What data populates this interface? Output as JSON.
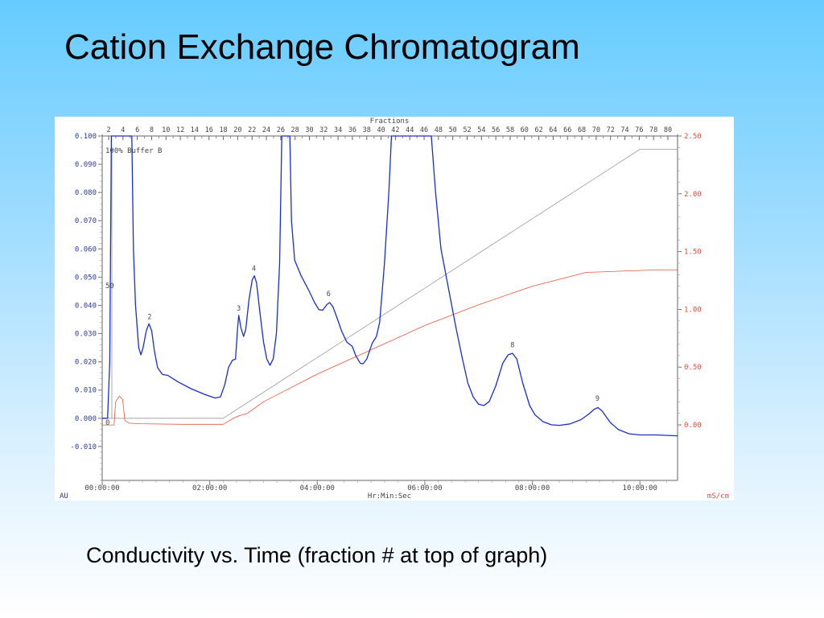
{
  "slide": {
    "title": "Cation Exchange Chromatogram",
    "caption": "Conductivity vs. Time (fraction # at top of graph)"
  },
  "chart_data": {
    "type": "line",
    "top_axis_label": "Fractions",
    "fraction_labels": [
      "2",
      "4",
      "6",
      "8",
      "10",
      "12",
      "14",
      "16",
      "18",
      "20",
      "22",
      "24",
      "26",
      "28",
      "30",
      "32",
      "34",
      "36",
      "38",
      "40",
      "42",
      "44",
      "46",
      "48",
      "50",
      "52",
      "54",
      "56",
      "58",
      "60",
      "62",
      "64",
      "66",
      "68",
      "70",
      "72",
      "74",
      "76",
      "78",
      "80"
    ],
    "xlabel": "Hr:Min:Sec",
    "x_ticks": [
      "00:00:00",
      "02:00:00",
      "04:00:00",
      "06:00:00",
      "08:00:00",
      "10:00:00"
    ],
    "x_range_hours": [
      0,
      10.7
    ],
    "left_unit": "AU",
    "left_ticks": [
      "0.100",
      "0.090",
      "0.080",
      "0.070",
      "0.060",
      "0.050",
      "0.040",
      "0.030",
      "0.020",
      "0.010",
      "0.000",
      "-0.010"
    ],
    "left_range": [
      -0.022,
      0.1
    ],
    "right_unit": "mS/cm",
    "right_ticks": [
      "2.50",
      "2.00",
      "1.50",
      "1.00",
      "0.50",
      "0.00"
    ],
    "right_range": [
      -0.48,
      2.5
    ],
    "buffer_label": "100% Buffer B",
    "buffer_marker_50": "50",
    "buffer_marker_0": "0",
    "colors": {
      "absorbance": "#1a2ecc",
      "conductivity": "#e8553c",
      "buffer": "#999999",
      "left_axis": "#2a3a9a",
      "right_axis": "#e04a3a"
    },
    "peak_labels": [
      {
        "text": "2",
        "x": 0.88,
        "y": 0.0335
      },
      {
        "text": "3",
        "x": 2.54,
        "y": 0.0365
      },
      {
        "text": "4",
        "x": 2.82,
        "y": 0.0505
      },
      {
        "text": "6",
        "x": 4.21,
        "y": 0.0415
      },
      {
        "text": "8",
        "x": 7.63,
        "y": 0.0235
      },
      {
        "text": "9",
        "x": 9.21,
        "y": 0.0045
      }
    ],
    "series": [
      {
        "key": "absorbance",
        "axis": "left",
        "points": [
          [
            0,
            0
          ],
          [
            0.1,
            0
          ],
          [
            0.14,
            0.02
          ],
          [
            0.17,
            0.1
          ],
          [
            0.2,
            0.1
          ],
          [
            0.55,
            0.1
          ],
          [
            0.58,
            0.06
          ],
          [
            0.62,
            0.04
          ],
          [
            0.68,
            0.025
          ],
          [
            0.72,
            0.0225
          ],
          [
            0.76,
            0.025
          ],
          [
            0.82,
            0.031
          ],
          [
            0.87,
            0.0335
          ],
          [
            0.92,
            0.031
          ],
          [
            0.97,
            0.024
          ],
          [
            1.03,
            0.018
          ],
          [
            1.12,
            0.0155
          ],
          [
            1.22,
            0.0152
          ],
          [
            1.4,
            0.013
          ],
          [
            1.65,
            0.0105
          ],
          [
            1.9,
            0.0085
          ],
          [
            2.1,
            0.0072
          ],
          [
            2.2,
            0.0076
          ],
          [
            2.28,
            0.012
          ],
          [
            2.35,
            0.018
          ],
          [
            2.42,
            0.0205
          ],
          [
            2.48,
            0.021
          ],
          [
            2.52,
            0.0325
          ],
          [
            2.54,
            0.0365
          ],
          [
            2.58,
            0.032
          ],
          [
            2.63,
            0.029
          ],
          [
            2.67,
            0.0315
          ],
          [
            2.73,
            0.042
          ],
          [
            2.79,
            0.049
          ],
          [
            2.83,
            0.0505
          ],
          [
            2.87,
            0.048
          ],
          [
            2.93,
            0.038
          ],
          [
            3.0,
            0.027
          ],
          [
            3.06,
            0.021
          ],
          [
            3.12,
            0.0188
          ],
          [
            3.18,
            0.021
          ],
          [
            3.24,
            0.03
          ],
          [
            3.3,
            0.055
          ],
          [
            3.34,
            0.1
          ],
          [
            3.49,
            0.1
          ],
          [
            3.52,
            0.07
          ],
          [
            3.58,
            0.056
          ],
          [
            3.7,
            0.0505
          ],
          [
            3.85,
            0.045
          ],
          [
            3.95,
            0.041
          ],
          [
            4.03,
            0.0385
          ],
          [
            4.1,
            0.0383
          ],
          [
            4.18,
            0.0403
          ],
          [
            4.23,
            0.041
          ],
          [
            4.29,
            0.0395
          ],
          [
            4.36,
            0.036
          ],
          [
            4.45,
            0.031
          ],
          [
            4.55,
            0.027
          ],
          [
            4.65,
            0.0255
          ],
          [
            4.72,
            0.022
          ],
          [
            4.8,
            0.0195
          ],
          [
            4.85,
            0.0193
          ],
          [
            4.92,
            0.021
          ],
          [
            5.02,
            0.0265
          ],
          [
            5.1,
            0.029
          ],
          [
            5.16,
            0.034
          ],
          [
            5.25,
            0.055
          ],
          [
            5.33,
            0.08
          ],
          [
            5.38,
            0.1
          ],
          [
            6.12,
            0.1
          ],
          [
            6.2,
            0.08
          ],
          [
            6.3,
            0.06
          ],
          [
            6.45,
            0.045
          ],
          [
            6.58,
            0.032
          ],
          [
            6.7,
            0.021
          ],
          [
            6.8,
            0.0125
          ],
          [
            6.9,
            0.0075
          ],
          [
            7.0,
            0.005
          ],
          [
            7.1,
            0.0045
          ],
          [
            7.2,
            0.006
          ],
          [
            7.32,
            0.0115
          ],
          [
            7.45,
            0.0195
          ],
          [
            7.55,
            0.0225
          ],
          [
            7.63,
            0.023
          ],
          [
            7.71,
            0.021
          ],
          [
            7.82,
            0.0125
          ],
          [
            7.95,
            0.0045
          ],
          [
            8.05,
            0.0012
          ],
          [
            8.2,
            -0.0012
          ],
          [
            8.35,
            -0.0023
          ],
          [
            8.5,
            -0.0025
          ],
          [
            8.7,
            -0.002
          ],
          [
            8.9,
            -0.0005
          ],
          [
            9.05,
            0.0015
          ],
          [
            9.15,
            0.0032
          ],
          [
            9.22,
            0.0038
          ],
          [
            9.3,
            0.0025
          ],
          [
            9.45,
            -0.0015
          ],
          [
            9.6,
            -0.004
          ],
          [
            9.8,
            -0.0055
          ],
          [
            10.0,
            -0.0059
          ],
          [
            10.3,
            -0.0059
          ],
          [
            10.7,
            -0.0062
          ]
        ]
      },
      {
        "key": "conductivity",
        "axis": "right",
        "points": [
          [
            0,
            0.0
          ],
          [
            0.22,
            0.0
          ],
          [
            0.25,
            0.2
          ],
          [
            0.32,
            0.25
          ],
          [
            0.38,
            0.22
          ],
          [
            0.42,
            0.04
          ],
          [
            0.5,
            0.015
          ],
          [
            0.7,
            0.01
          ],
          [
            1.5,
            0.005
          ],
          [
            2.25,
            0.005
          ],
          [
            2.45,
            0.06
          ],
          [
            2.55,
            0.08
          ],
          [
            2.7,
            0.1
          ],
          [
            3.0,
            0.2
          ],
          [
            4.0,
            0.44
          ],
          [
            5.0,
            0.65
          ],
          [
            6.0,
            0.86
          ],
          [
            7.0,
            1.04
          ],
          [
            8.0,
            1.2
          ],
          [
            9.0,
            1.32
          ],
          [
            10.2,
            1.34
          ],
          [
            10.7,
            1.34
          ]
        ]
      },
      {
        "key": "buffer",
        "axis": "left",
        "points": [
          [
            0,
            0.0
          ],
          [
            0.18,
            0.0
          ],
          [
            0.18,
            0.05
          ],
          [
            0.18,
            0.095
          ],
          [
            0.2,
            0.0953
          ],
          [
            0.18,
            0.0953
          ],
          [
            0.18,
            0.0
          ],
          [
            2.25,
            0.0
          ],
          [
            10.0,
            0.0953
          ],
          [
            10.7,
            0.0953
          ]
        ]
      }
    ]
  }
}
